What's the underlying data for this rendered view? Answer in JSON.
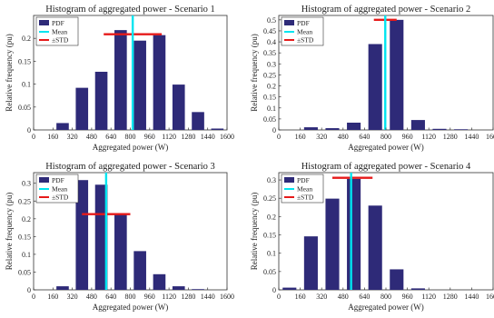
{
  "colors": {
    "pdf_bar": "#2e2a78",
    "mean_line": "#00e5f0",
    "std_line": "#e61a1a",
    "axis": "#333333"
  },
  "legend": {
    "pdf": "PDF",
    "mean": "Mean",
    "std": "±STD"
  },
  "chart_data": [
    {
      "type": "bar",
      "title": "Histogram of aggregated power - Scenario 1",
      "xlabel": "Aggregated power (W)",
      "ylabel": "Relative frequency (pu)",
      "xlim": [
        0,
        1600
      ],
      "ylim": [
        0,
        0.25
      ],
      "x_ticks": [
        "0",
        "160",
        "320",
        "480",
        "640",
        "800",
        "960",
        "1120",
        "1280",
        "1440",
        "1600"
      ],
      "y_ticks": [
        "0",
        "0.05",
        "0.1",
        "0.15",
        "0.2"
      ],
      "bin_centers": [
        240,
        400,
        560,
        720,
        880,
        1040,
        1200,
        1360,
        1520
      ],
      "values": [
        0.015,
        0.092,
        0.127,
        0.218,
        0.195,
        0.207,
        0.099,
        0.039,
        0.003
      ],
      "mean": 820,
      "std_range": [
        580,
        1060
      ],
      "std_level": 0.209,
      "legend_position": "top-left",
      "grid": false
    },
    {
      "type": "bar",
      "title": "Histogram of aggregated power - Scenario 2",
      "xlabel": "Aggregated power (W)",
      "ylabel": "Relative frequency (pu)",
      "xlim": [
        0,
        1600
      ],
      "ylim": [
        0,
        0.52
      ],
      "x_ticks": [
        "0",
        "160",
        "320",
        "480",
        "640",
        "800",
        "960",
        "1120",
        "1280",
        "1440",
        "1600"
      ],
      "y_ticks": [
        "0",
        "0.05",
        "0.1",
        "0.15",
        "0.2",
        "0.25",
        "0.3",
        "0.35",
        "0.4",
        "0.45",
        "0.5"
      ],
      "bin_centers": [
        240,
        400,
        560,
        720,
        880,
        1040,
        1200,
        1360
      ],
      "values": [
        0.012,
        0.008,
        0.033,
        0.39,
        0.5,
        0.045,
        0.005,
        0.003
      ],
      "mean": 795,
      "std_range": [
        710,
        880
      ],
      "std_level": 0.5,
      "legend_position": "top-left",
      "grid": false
    },
    {
      "type": "bar",
      "title": "Histogram of aggregated power - Scenario 3",
      "xlabel": "Aggregated power (W)",
      "ylabel": "Relative frequency (pu)",
      "xlim": [
        0,
        1600
      ],
      "ylim": [
        0,
        0.33
      ],
      "x_ticks": [
        "0",
        "160",
        "320",
        "480",
        "640",
        "800",
        "960",
        "1120",
        "1280",
        "1440",
        "1600"
      ],
      "y_ticks": [
        "0",
        "0.05",
        "0.1",
        "0.15",
        "0.2",
        "0.25",
        "0.3"
      ],
      "bin_centers": [
        240,
        400,
        560,
        720,
        880,
        1040,
        1200,
        1360
      ],
      "values": [
        0.01,
        0.309,
        0.296,
        0.212,
        0.109,
        0.044,
        0.01,
        0.002
      ],
      "mean": 600,
      "std_range": [
        400,
        800
      ],
      "std_level": 0.213,
      "legend_position": "top-left",
      "grid": false
    },
    {
      "type": "bar",
      "title": "Histogram of aggregated power - Scenario 4",
      "xlabel": "Aggregated power (W)",
      "ylabel": "Relative frequency (pu)",
      "xlim": [
        0,
        1600
      ],
      "ylim": [
        0,
        0.32
      ],
      "x_ticks": [
        "0",
        "160",
        "320",
        "480",
        "640",
        "800",
        "960",
        "1120",
        "1280",
        "1440",
        "1600"
      ],
      "y_ticks": [
        "0",
        "0.05",
        "0.1",
        "0.15",
        "0.2",
        "0.25",
        "0.3"
      ],
      "bin_centers": [
        80,
        240,
        400,
        560,
        720,
        880,
        1040
      ],
      "values": [
        0.006,
        0.146,
        0.249,
        0.303,
        0.23,
        0.056,
        0.004
      ],
      "mean": 540,
      "std_range": [
        400,
        700
      ],
      "std_level": 0.306,
      "legend_position": "top-left",
      "grid": false
    }
  ]
}
